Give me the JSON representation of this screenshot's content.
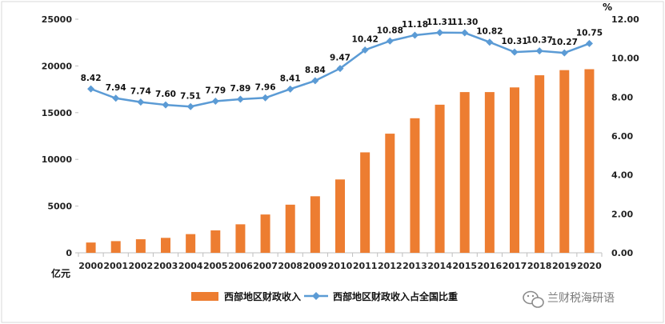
{
  "chart_data": {
    "type": "bar",
    "categories": [
      "2000",
      "2001",
      "2002",
      "2003",
      "2004",
      "2005",
      "2006",
      "2007",
      "2008",
      "2009",
      "2010",
      "2011",
      "2012",
      "2013",
      "2014",
      "2015",
      "2016",
      "2017",
      "2018",
      "2019",
      "2020"
    ],
    "series": [
      {
        "name": "西部地区财政收入",
        "type": "bar",
        "axis": "left",
        "color": "#ED7D31",
        "values": [
          1100,
          1250,
          1450,
          1600,
          2000,
          2400,
          3050,
          4100,
          5150,
          6050,
          7850,
          10750,
          12750,
          14400,
          15850,
          17200,
          17200,
          17700,
          19000,
          19550,
          19650
        ]
      },
      {
        "name": "西部地区财政收入占全国比重",
        "type": "line",
        "axis": "right",
        "color": "#5B9BD5",
        "values": [
          8.42,
          7.94,
          7.74,
          7.6,
          7.51,
          7.79,
          7.89,
          7.96,
          8.41,
          8.84,
          9.47,
          10.42,
          10.88,
          11.18,
          11.31,
          11.3,
          10.82,
          10.31,
          10.37,
          10.27,
          10.75
        ]
      }
    ],
    "y_left": {
      "unit": "亿元",
      "range": [
        0,
        25000
      ],
      "ticks": [
        0,
        5000,
        10000,
        15000,
        20000,
        25000
      ],
      "tick_labels": [
        "0",
        "5000",
        "10000",
        "15000",
        "20000",
        "25000"
      ]
    },
    "y_right": {
      "unit": "%",
      "range": [
        0,
        12
      ],
      "ticks": [
        0,
        2,
        4,
        6,
        8,
        10,
        12
      ],
      "tick_labels": [
        "0.00",
        "2.00",
        "4.00",
        "6.00",
        "8.00",
        "10.00",
        "12.00"
      ]
    },
    "line_labels": [
      "8.42",
      "7.94",
      "7.74",
      "7.60",
      "7.51",
      "7.79",
      "7.89",
      "7.96",
      "8.41",
      "8.84",
      "9.47",
      "10.42",
      "10.88",
      "11.18",
      "11.31",
      "11.30",
      "10.82",
      "10.31",
      "10.37",
      "10.27",
      "10.75"
    ],
    "grid": false,
    "legend_position": "bottom"
  },
  "watermark": {
    "icon": "wechat-icon",
    "text": "兰财税海研语"
  }
}
